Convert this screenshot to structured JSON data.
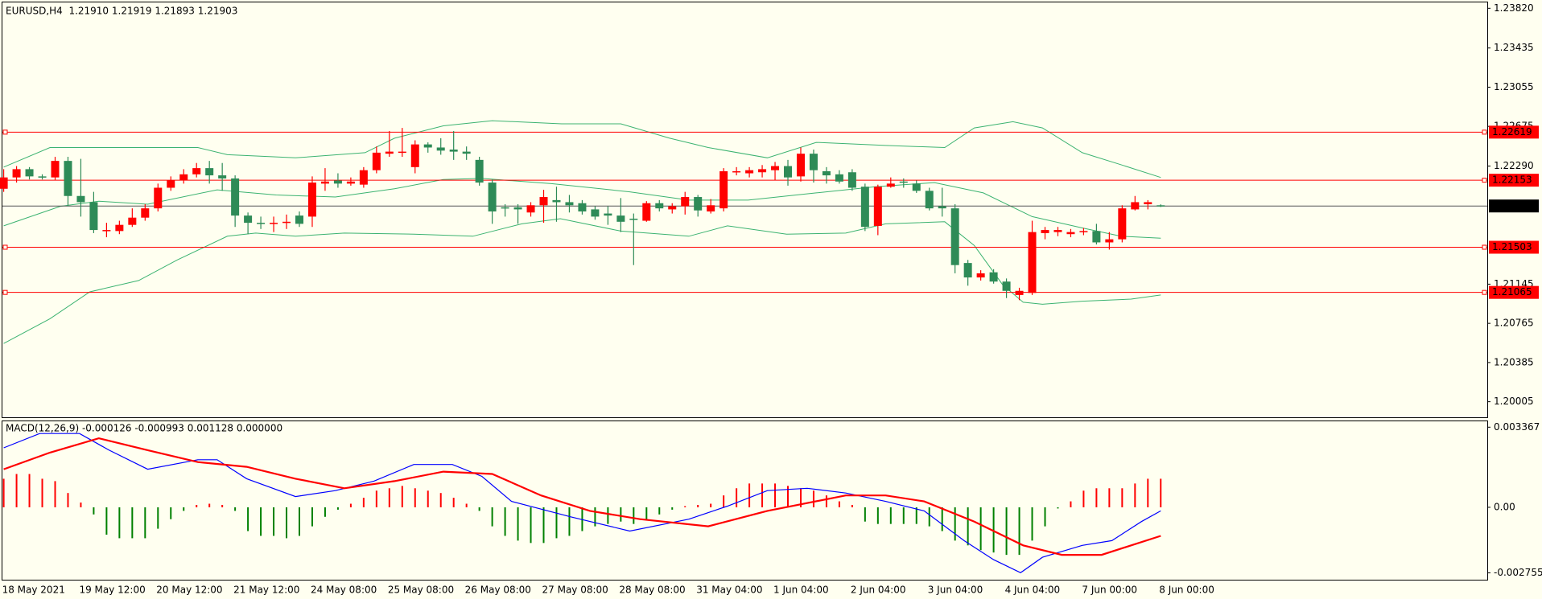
{
  "chart_data": [
    {
      "type": "candlestick",
      "title": "EURUSD,H4  1.21910 1.21919 1.21893 1.21903",
      "categories": [
        "18 May 2021",
        null,
        null,
        null,
        null,
        null,
        "19 May 12:00",
        null,
        null,
        null,
        null,
        null,
        "20 May 12:00",
        null,
        null,
        null,
        null,
        null,
        "21 May 12:00",
        null,
        null,
        null,
        null,
        null,
        "24 May 08:00",
        null,
        null,
        null,
        null,
        null,
        "25 May 08:00",
        null,
        null,
        null,
        null,
        null,
        "26 May 08:00",
        null,
        null,
        null,
        null,
        null,
        "27 May 08:00",
        null,
        null,
        null,
        null,
        null,
        "28 May 08:00",
        null,
        null,
        null,
        null,
        null,
        "31 May 04:00",
        null,
        null,
        null,
        null,
        null,
        "1 Jun 04:00",
        null,
        null,
        null,
        null,
        null,
        "2 Jun 04:00",
        null,
        null,
        null,
        null,
        null,
        "3 Jun 04:00",
        null,
        null,
        null,
        null,
        null,
        "4 Jun 04:00",
        null,
        null,
        null,
        null,
        null,
        "7 Jun 00:00",
        null,
        null,
        null,
        null,
        null,
        "8 Jun 00:00"
      ],
      "open": [
        1.2207,
        1.2218,
        1.2226,
        1.2219,
        1.2218,
        1.2234,
        1.22,
        1.2194,
        1.2166,
        1.2166,
        1.2172,
        1.2179,
        1.2188,
        1.2208,
        1.2215,
        1.2221,
        1.2227,
        1.222,
        1.2217,
        1.2181,
        1.2174,
        1.2173,
        1.2174,
        1.2181,
        1.218,
        1.2212,
        1.2215,
        1.2212,
        1.2211,
        1.2225,
        1.2241,
        1.2242,
        1.2228,
        1.225,
        1.2247,
        1.2245,
        1.2243,
        1.2235,
        1.2213,
        1.2189,
        1.2189,
        1.2184,
        1.2191,
        1.2196,
        1.2194,
        1.2193,
        1.2187,
        1.2183,
        1.2181,
        1.2178,
        1.2176,
        1.2193,
        1.2187,
        1.219,
        1.2199,
        1.2185,
        1.2188,
        1.2223,
        1.2222,
        1.2223,
        1.2225,
        1.2229,
        1.2219,
        1.2241,
        1.2224,
        1.2221,
        1.2223,
        1.2209,
        1.2171,
        1.2209,
        1.2214,
        1.2212,
        1.2205,
        1.219,
        1.2188,
        1.2135,
        1.2121,
        1.2126,
        1.2117,
        1.2104,
        1.2106,
        1.2164,
        1.2165,
        1.2163,
        1.2165,
        1.2166,
        1.2155,
        1.2158,
        1.2187,
        1.2192,
        1.2191
      ],
      "high": [
        1.2226,
        1.2229,
        1.2228,
        1.2221,
        1.2238,
        1.2238,
        1.2236,
        1.2204,
        1.2174,
        1.2176,
        1.2188,
        1.2192,
        1.2212,
        1.2219,
        1.2226,
        1.2232,
        1.2234,
        1.2232,
        1.222,
        1.2184,
        1.218,
        1.218,
        1.2182,
        1.2185,
        1.2219,
        1.2227,
        1.2222,
        1.2218,
        1.2228,
        1.2248,
        1.2263,
        1.2266,
        1.2254,
        1.2252,
        1.2256,
        1.2263,
        1.2248,
        1.2238,
        1.2216,
        1.2192,
        1.2192,
        1.2194,
        1.2206,
        1.2209,
        1.2201,
        1.2196,
        1.219,
        1.219,
        1.2198,
        1.2183,
        1.2195,
        1.2196,
        1.2193,
        1.2204,
        1.2201,
        1.2197,
        1.2227,
        1.2228,
        1.2228,
        1.223,
        1.2233,
        1.2235,
        1.2247,
        1.2245,
        1.2228,
        1.2225,
        1.2226,
        1.2212,
        1.2211,
        1.2218,
        1.2217,
        1.2215,
        1.2208,
        1.2208,
        1.2192,
        1.2138,
        1.2128,
        1.2129,
        1.212,
        1.2111,
        1.2176,
        1.217,
        1.217,
        1.2168,
        1.2169,
        1.2173,
        1.2165,
        1.2191,
        1.22,
        1.2196,
        1.21919
      ],
      "low": [
        1.2204,
        1.2213,
        1.2216,
        1.2216,
        1.2215,
        1.219,
        1.218,
        1.2164,
        1.216,
        1.2163,
        1.217,
        1.2176,
        1.2185,
        1.2205,
        1.2212,
        1.2218,
        1.2212,
        1.2205,
        1.217,
        1.2163,
        1.2168,
        1.2165,
        1.2168,
        1.217,
        1.217,
        1.2205,
        1.2208,
        1.221,
        1.2208,
        1.2222,
        1.2238,
        1.2238,
        1.2222,
        1.2242,
        1.224,
        1.2235,
        1.2235,
        1.221,
        1.2173,
        1.218,
        1.2173,
        1.218,
        1.2174,
        1.2175,
        1.2184,
        1.2182,
        1.2177,
        1.2172,
        1.2165,
        1.2133,
        1.2175,
        1.2185,
        1.2183,
        1.2182,
        1.218,
        1.2183,
        1.2185,
        1.222,
        1.2218,
        1.2218,
        1.2215,
        1.221,
        1.2214,
        1.2213,
        1.2212,
        1.2212,
        1.2205,
        1.2166,
        1.2162,
        1.2208,
        1.2208,
        1.2203,
        1.2186,
        1.218,
        1.2125,
        1.2113,
        1.2118,
        1.2115,
        1.2101,
        1.2099,
        1.2104,
        1.2158,
        1.2161,
        1.216,
        1.2162,
        1.2153,
        1.2148,
        1.2155,
        1.2186,
        1.2187,
        1.21893
      ],
      "close": [
        1.2218,
        1.2226,
        1.2219,
        1.2218,
        1.2234,
        1.22,
        1.2194,
        1.2167,
        1.2167,
        1.2172,
        1.2179,
        1.2188,
        1.2208,
        1.2215,
        1.2221,
        1.2227,
        1.222,
        1.2217,
        1.2181,
        1.2174,
        1.2173,
        1.2174,
        1.2175,
        1.2173,
        1.2213,
        1.2214,
        1.2212,
        1.2214,
        1.2225,
        1.2242,
        1.2243,
        1.2243,
        1.225,
        1.2247,
        1.2244,
        1.2243,
        1.2241,
        1.2213,
        1.2185,
        1.2188,
        1.2187,
        1.2191,
        1.2199,
        1.2194,
        1.2191,
        1.2185,
        1.218,
        1.2181,
        1.2175,
        1.2177,
        1.2193,
        1.2188,
        1.219,
        1.2199,
        1.2186,
        1.2191,
        1.2224,
        1.2224,
        1.2225,
        1.2226,
        1.2229,
        1.2218,
        1.2241,
        1.2225,
        1.222,
        1.2214,
        1.2208,
        1.217,
        1.2209,
        1.2212,
        1.2213,
        1.2205,
        1.2188,
        1.2188,
        1.2133,
        1.2121,
        1.2125,
        1.2117,
        1.2108,
        1.2108,
        1.2165,
        1.2167,
        1.2167,
        1.2165,
        1.2166,
        1.2155,
        1.2158,
        1.2188,
        1.2194,
        1.2194,
        1.21903
      ],
      "up_color": "#ff0000",
      "down_color": "#2e8b57",
      "bands": [
        {
          "color": "#3cb371",
          "x": [
            0,
            3.6,
            15.1,
            17.4,
            22.7,
            28.1,
            30.4,
            34.2,
            38,
            43.4,
            48,
            51.8,
            54.8,
            59.4,
            63.2,
            68.6,
            73.2,
            75.5,
            78.5,
            80.8,
            83.9,
            87,
            90
          ],
          "values": [
            1.2228,
            1.2247,
            1.2247,
            1.224,
            1.2237,
            1.2242,
            1.2256,
            1.2268,
            1.2273,
            1.227,
            1.227,
            1.2256,
            1.2247,
            1.2237,
            1.2252,
            1.2249,
            1.2247,
            1.2266,
            1.2272,
            1.2266,
            1.2242,
            1.223,
            1.2218
          ]
        },
        {
          "color": "#3cb371",
          "x": [
            0,
            4.4,
            7.4,
            11.2,
            16.6,
            21.2,
            25.8,
            30.4,
            34.2,
            37.2,
            42.6,
            48.7,
            53.3,
            57.9,
            63.2,
            67.8,
            72.4,
            76.2,
            80,
            83.9,
            86.9,
            90
          ],
          "values": [
            1.2171,
            1.219,
            1.2195,
            1.2192,
            1.2206,
            1.2201,
            1.2199,
            1.2207,
            1.2216,
            1.2217,
            1.2212,
            1.2204,
            1.2196,
            1.2196,
            1.2203,
            1.2209,
            1.2213,
            1.2203,
            1.218,
            1.2169,
            1.2161,
            1.2159
          ]
        },
        {
          "color": "#3cb371",
          "x": [
            0,
            3.6,
            6.7,
            10.5,
            13.5,
            17.4,
            19.6,
            22.7,
            26.5,
            31.9,
            36.5,
            40.3,
            43.3,
            48,
            53.3,
            56.3,
            60.9,
            65.5,
            68.6,
            73.2,
            75.5,
            77.7,
            79.3,
            80.8,
            83.9,
            87.7,
            90
          ],
          "values": [
            1.2057,
            1.2081,
            1.2107,
            1.2118,
            1.2138,
            1.2161,
            1.2164,
            1.2161,
            1.2164,
            1.2163,
            1.2161,
            1.2173,
            1.2178,
            1.2166,
            1.2161,
            1.2171,
            1.2163,
            1.2164,
            1.2173,
            1.2175,
            1.2152,
            1.2114,
            1.2097,
            1.2095,
            1.2098,
            1.21,
            1.2104
          ]
        }
      ],
      "levels": [
        1.22619,
        1.22153,
        1.21503,
        1.21065
      ],
      "level_color": "#ff0000",
      "bid": 1.21903,
      "bid_color": "#000000",
      "xlim": [
        -0.1,
        115.4
      ],
      "ylim": [
        1.19854,
        1.23877
      ],
      "yticks": [
        {
          "value": 1.2382,
          "label": "1.23820"
        },
        1.23435,
        1.23055,
        1.22675,
        {
          "value": 1.2229,
          "label": "1.22290"
        },
        1.21145,
        1.20765,
        1.20385,
        1.20005
      ]
    },
    {
      "type": "macd",
      "title": "MACD(12,26,9) -0.000126 -0.000993 0.001128 0.000000",
      "values": [
        0.0012,
        0.0014,
        0.0014,
        0.0012,
        0.0011,
        0.0006,
        0.0002,
        -0.0003,
        -0.00115,
        -0.0013,
        -0.0013,
        -0.0013,
        -0.0009,
        -0.0005,
        -0.00015,
        0.0001,
        0.00015,
        0.0001,
        -0.00015,
        -0.001,
        -0.0012,
        -0.0012,
        -0.0013,
        -0.0012,
        -0.0008,
        -0.0004,
        -0.0001,
        0.00015,
        0.0004,
        0.0007,
        0.0008,
        0.0009,
        0.0008,
        0.0007,
        0.0006,
        0.0004,
        0.00015,
        -0.00015,
        -0.0008,
        -0.0012,
        -0.0014,
        -0.0015,
        -0.0015,
        -0.0013,
        -0.0012,
        -0.001,
        -0.0008,
        -0.0007,
        -0.0006,
        -0.0007,
        -0.0005,
        -0.0003,
        -0.0001,
        5e-05,
        0.0001,
        0.00015,
        0.0005,
        0.0008,
        0.001,
        0.001,
        0.001,
        0.0009,
        0.0008,
        0.0007,
        0.0005,
        0.00025,
        0.0001,
        -0.0006,
        -0.0007,
        -0.0007,
        -0.0007,
        -0.0007,
        -0.0008,
        -0.001,
        -0.0014,
        -0.0016,
        -0.0018,
        -0.0019,
        -0.002,
        -0.002,
        -0.0014,
        -0.0008,
        -5e-05,
        0.00025,
        0.0007,
        0.0008,
        0.0008,
        0.0008,
        0.001,
        0.0012,
        0.0012
      ],
      "up_color": "#ff0000",
      "down_color": "#008000",
      "series": [
        {
          "color": "#0000ff",
          "x": [
            0,
            2.8,
            5.9,
            8.2,
            11.2,
            15.1,
            16.6,
            18.9,
            22.7,
            25.8,
            28.8,
            31.9,
            34.9,
            37.2,
            39.5,
            44.1,
            48.7,
            53.3,
            56.3,
            59.4,
            62.5,
            65.5,
            68.6,
            71.6,
            74.7,
            77,
            79.1,
            80.8,
            83.9,
            86.2,
            88.5,
            90
          ],
          "values": [
            0.0025,
            0.0031,
            0.0031,
            0.0024,
            0.0016,
            0.002,
            0.002,
            0.0012,
            0.00045,
            0.0007,
            0.0011,
            0.0018,
            0.0018,
            0.0013,
            0.00025,
            -0.0004,
            -0.001,
            -0.0005,
            5e-05,
            0.0007,
            0.0008,
            0.0006,
            0.00025,
            -0.00015,
            -0.0014,
            -0.0022,
            -0.00275,
            -0.0021,
            -0.0016,
            -0.0014,
            -0.0006,
            -0.00015
          ]
        },
        {
          "color": "#ff0000",
          "x": [
            0,
            3.6,
            7.4,
            11.2,
            15.1,
            18.9,
            22.7,
            26.5,
            30.4,
            34.2,
            38,
            41.8,
            45.6,
            49.5,
            54.8,
            59.4,
            65.5,
            68.6,
            71.6,
            75.5,
            79.3,
            82.3,
            85.4,
            87.7,
            90
          ],
          "values": [
            0.0016,
            0.0023,
            0.0029,
            0.0024,
            0.0019,
            0.0017,
            0.0012,
            0.0008,
            0.0011,
            0.0015,
            0.0014,
            0.0005,
            -0.00015,
            -0.0005,
            -0.0008,
            -0.00015,
            0.0005,
            0.0005,
            0.00025,
            -0.0006,
            -0.0016,
            -0.002,
            -0.002,
            -0.0016,
            -0.0012
          ]
        }
      ],
      "ylim": [
        -0.003043,
        0.003614
      ],
      "yticks": [
        0.003367,
        {
          "value": 0,
          "label": "0.00"
        },
        -0.002755
      ]
    }
  ]
}
